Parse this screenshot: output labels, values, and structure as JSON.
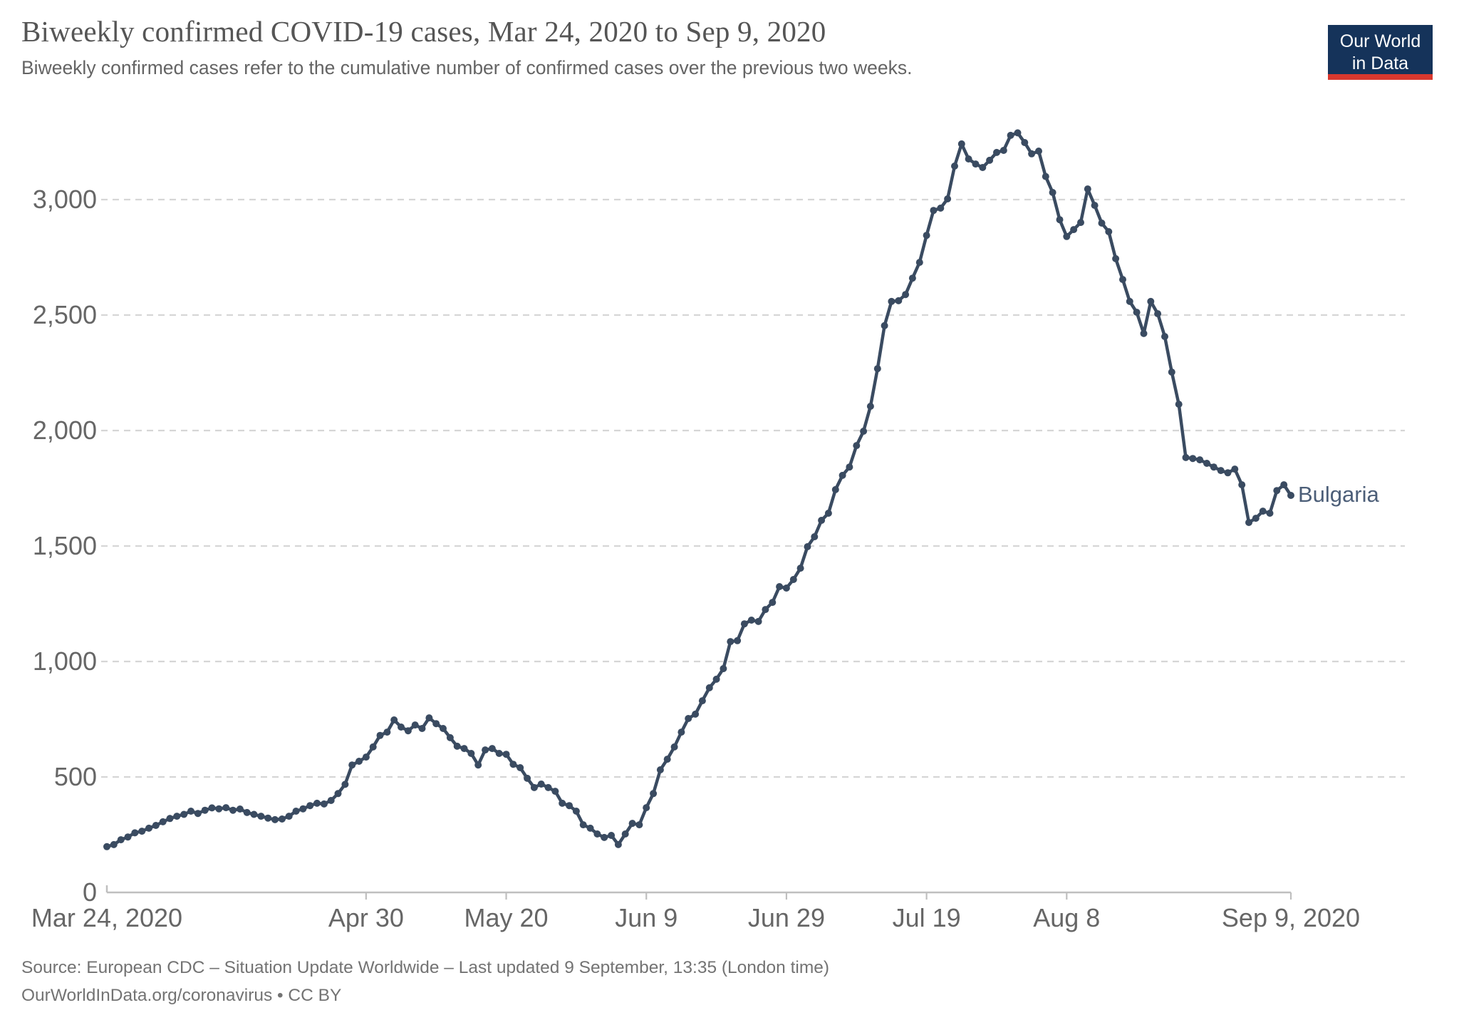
{
  "header": {
    "title": "Biweekly confirmed COVID-19 cases, Mar 24, 2020 to Sep 9, 2020",
    "subtitle": "Biweekly confirmed cases refer to the cumulative number of confirmed cases over the previous two weeks.",
    "logo": {
      "line1": "Our World",
      "line2": "in Data",
      "bg_color": "#15335a",
      "stripe_color": "#d8382e"
    }
  },
  "chart_data": {
    "type": "line",
    "title": "Biweekly confirmed COVID-19 cases, Mar 24, 2020 to Sep 9, 2020",
    "series_label": "Bulgaria",
    "line_color": "#3a4b61",
    "grid": "dashed horizontal gridlines",
    "legend_position": "end-of-line label",
    "x_axis_range": [
      "Mar 24, 2020",
      "Sep 9, 2020"
    ],
    "total_days": 169,
    "x_ticks": [
      {
        "label": "Mar 24, 2020",
        "day": 0
      },
      {
        "label": "Apr 30",
        "day": 37
      },
      {
        "label": "May 20",
        "day": 57
      },
      {
        "label": "Jun 9",
        "day": 77
      },
      {
        "label": "Jun 29",
        "day": 97
      },
      {
        "label": "Jul 19",
        "day": 117
      },
      {
        "label": "Aug 8",
        "day": 137
      },
      {
        "label": "Sep 9, 2020",
        "day": 169
      }
    ],
    "y_ticks": [
      {
        "label": "0",
        "value": 0
      },
      {
        "label": "500",
        "value": 500
      },
      {
        "label": "1,000",
        "value": 1000
      },
      {
        "label": "1,500",
        "value": 1500
      },
      {
        "label": "2,000",
        "value": 2000
      },
      {
        "label": "2,500",
        "value": 2500
      },
      {
        "label": "3,000",
        "value": 3000
      }
    ],
    "ylim": [
      0,
      3400
    ],
    "values": [
      198,
      207,
      228,
      240,
      258,
      265,
      278,
      290,
      306,
      320,
      330,
      338,
      352,
      342,
      356,
      366,
      362,
      367,
      356,
      361,
      346,
      338,
      330,
      322,
      315,
      318,
      330,
      352,
      362,
      376,
      386,
      383,
      398,
      428,
      468,
      552,
      568,
      586,
      630,
      680,
      694,
      747,
      716,
      700,
      725,
      710,
      756,
      731,
      710,
      670,
      633,
      623,
      602,
      552,
      617,
      623,
      602,
      598,
      555,
      540,
      494,
      454,
      469,
      454,
      438,
      386,
      376,
      352,
      293,
      278,
      253,
      238,
      247,
      207,
      253,
      299,
      293,
      367,
      428,
      531,
      577,
      630,
      694,
      753,
      772,
      830,
      886,
      923,
      969,
      1086,
      1090,
      1163,
      1179,
      1173,
      1225,
      1256,
      1324,
      1318,
      1355,
      1404,
      1497,
      1540,
      1611,
      1642,
      1744,
      1806,
      1842,
      1935,
      1997,
      2105,
      2268,
      2454,
      2559,
      2562,
      2589,
      2660,
      2728,
      2845,
      2953,
      2963,
      3003,
      3145,
      3241,
      3176,
      3154,
      3139,
      3170,
      3204,
      3213,
      3278,
      3289,
      3247,
      3198,
      3210,
      3100,
      3031,
      2913,
      2840,
      2870,
      2901,
      3046,
      2975,
      2898,
      2861,
      2744,
      2654,
      2559,
      2512,
      2420,
      2559,
      2506,
      2407,
      2253,
      2114,
      1883,
      1879,
      1873,
      1858,
      1842,
      1827,
      1817,
      1833,
      1765,
      1602,
      1620,
      1651,
      1642,
      1740,
      1765,
      1719
    ]
  },
  "footer": {
    "source_line": "Source: European CDC – Situation Update Worldwide – Last updated 9 September, 13:35 (London time)",
    "link_line": "OurWorldInData.org/coronavirus • CC BY"
  }
}
